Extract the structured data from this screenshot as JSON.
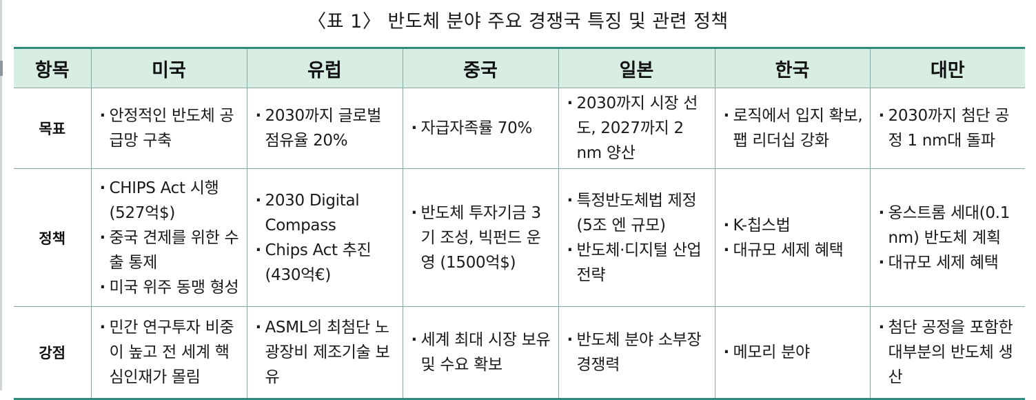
{
  "caption": "〈표 1〉 반도체 분야 주요 경쟁국 특징 및 관련 정책",
  "columns": [
    "항목",
    "미국",
    "유럽",
    "중국",
    "일본",
    "한국",
    "대만"
  ],
  "rows": [
    {
      "label": "목표",
      "cells": [
        [
          "안정적인 반도체 공급망 구축"
        ],
        [
          "2030까지 글로벌 점유율 20%"
        ],
        [
          "자급자족률 70%"
        ],
        [
          "2030까지 시장 선도, 2027까지 2 nm 양산"
        ],
        [
          "로직에서 입지 확보, 팹 리더십 강화"
        ],
        [
          "2030까지 첨단 공정 1 nm대 돌파"
        ]
      ]
    },
    {
      "label": "정책",
      "cells": [
        [
          "CHIPS Act 시행 (527억$)",
          "중국 견제를 위한 수출 통제",
          "미국 위주 동맹 형성"
        ],
        [
          "2030 Digital Compass",
          "Chips Act 추진 (430억€)"
        ],
        [
          "반도체 투자기금 3기 조성, 빅펀드 운영 (1500억$)"
        ],
        [
          "특정반도체법 제정 (5조 엔 규모)",
          "반도체·디지털 산업 전략"
        ],
        [
          "K-칩스법",
          "대규모 세제 혜택"
        ],
        [
          "옹스트롬 세대(0.1 nm) 반도체 계획",
          "대규모 세제 혜택"
        ]
      ]
    },
    {
      "label": "강점",
      "cells": [
        [
          "민간 연구투자 비중이 높고 전 세계 핵심인재가 몰림"
        ],
        [
          "ASML의 최첨단 노광장비 제조기술 보유"
        ],
        [
          "세계 최대 시장 보유 및 수요 확보"
        ],
        [
          "반도체 분야 소부장 경쟁력"
        ],
        [
          "메모리 분야"
        ],
        [
          "첨단 공정을 포함한 대부분의 반도체 생산"
        ]
      ]
    }
  ]
}
